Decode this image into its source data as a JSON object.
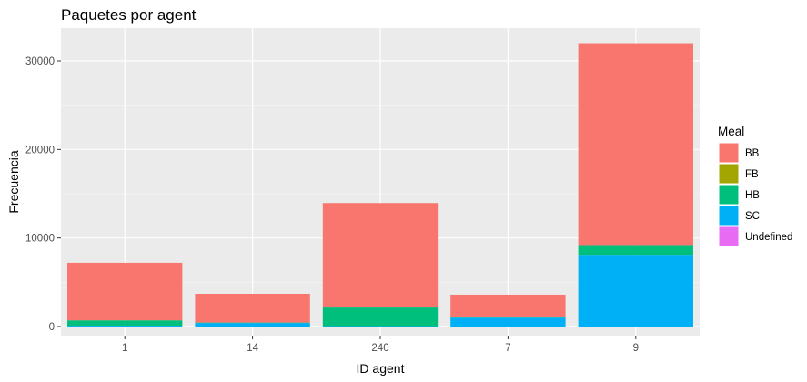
{
  "chart_data": {
    "type": "bar",
    "stacked": true,
    "title": "Paquetes por agent",
    "xlabel": "ID agent",
    "ylabel": "Frecuencia",
    "categories": [
      "1",
      "14",
      "240",
      "7",
      "9"
    ],
    "ylim": [
      0,
      33000
    ],
    "yticks": [
      0,
      10000,
      20000,
      30000
    ],
    "ytick_labels": [
      "0",
      "10000",
      "20000",
      "30000"
    ],
    "grid": true,
    "legend": {
      "title": "Meal",
      "position": "right"
    },
    "series": [
      {
        "name": "SC",
        "color": "#00B0F6",
        "values": [
          100,
          400,
          50,
          1000,
          8100
        ]
      },
      {
        "name": "HB",
        "color": "#00BF7D",
        "values": [
          600,
          50,
          2100,
          50,
          1100
        ]
      },
      {
        "name": "FB",
        "color": "#A3A500",
        "values": [
          0,
          0,
          0,
          0,
          0
        ]
      },
      {
        "name": "BB",
        "color": "#F8766D",
        "values": [
          6500,
          3250,
          11800,
          2550,
          22800
        ]
      },
      {
        "name": "Undefined",
        "color": "#E76BF3",
        "values": [
          0,
          0,
          0,
          0,
          0
        ]
      }
    ],
    "legend_order": [
      "BB",
      "FB",
      "HB",
      "SC",
      "Undefined"
    ]
  }
}
